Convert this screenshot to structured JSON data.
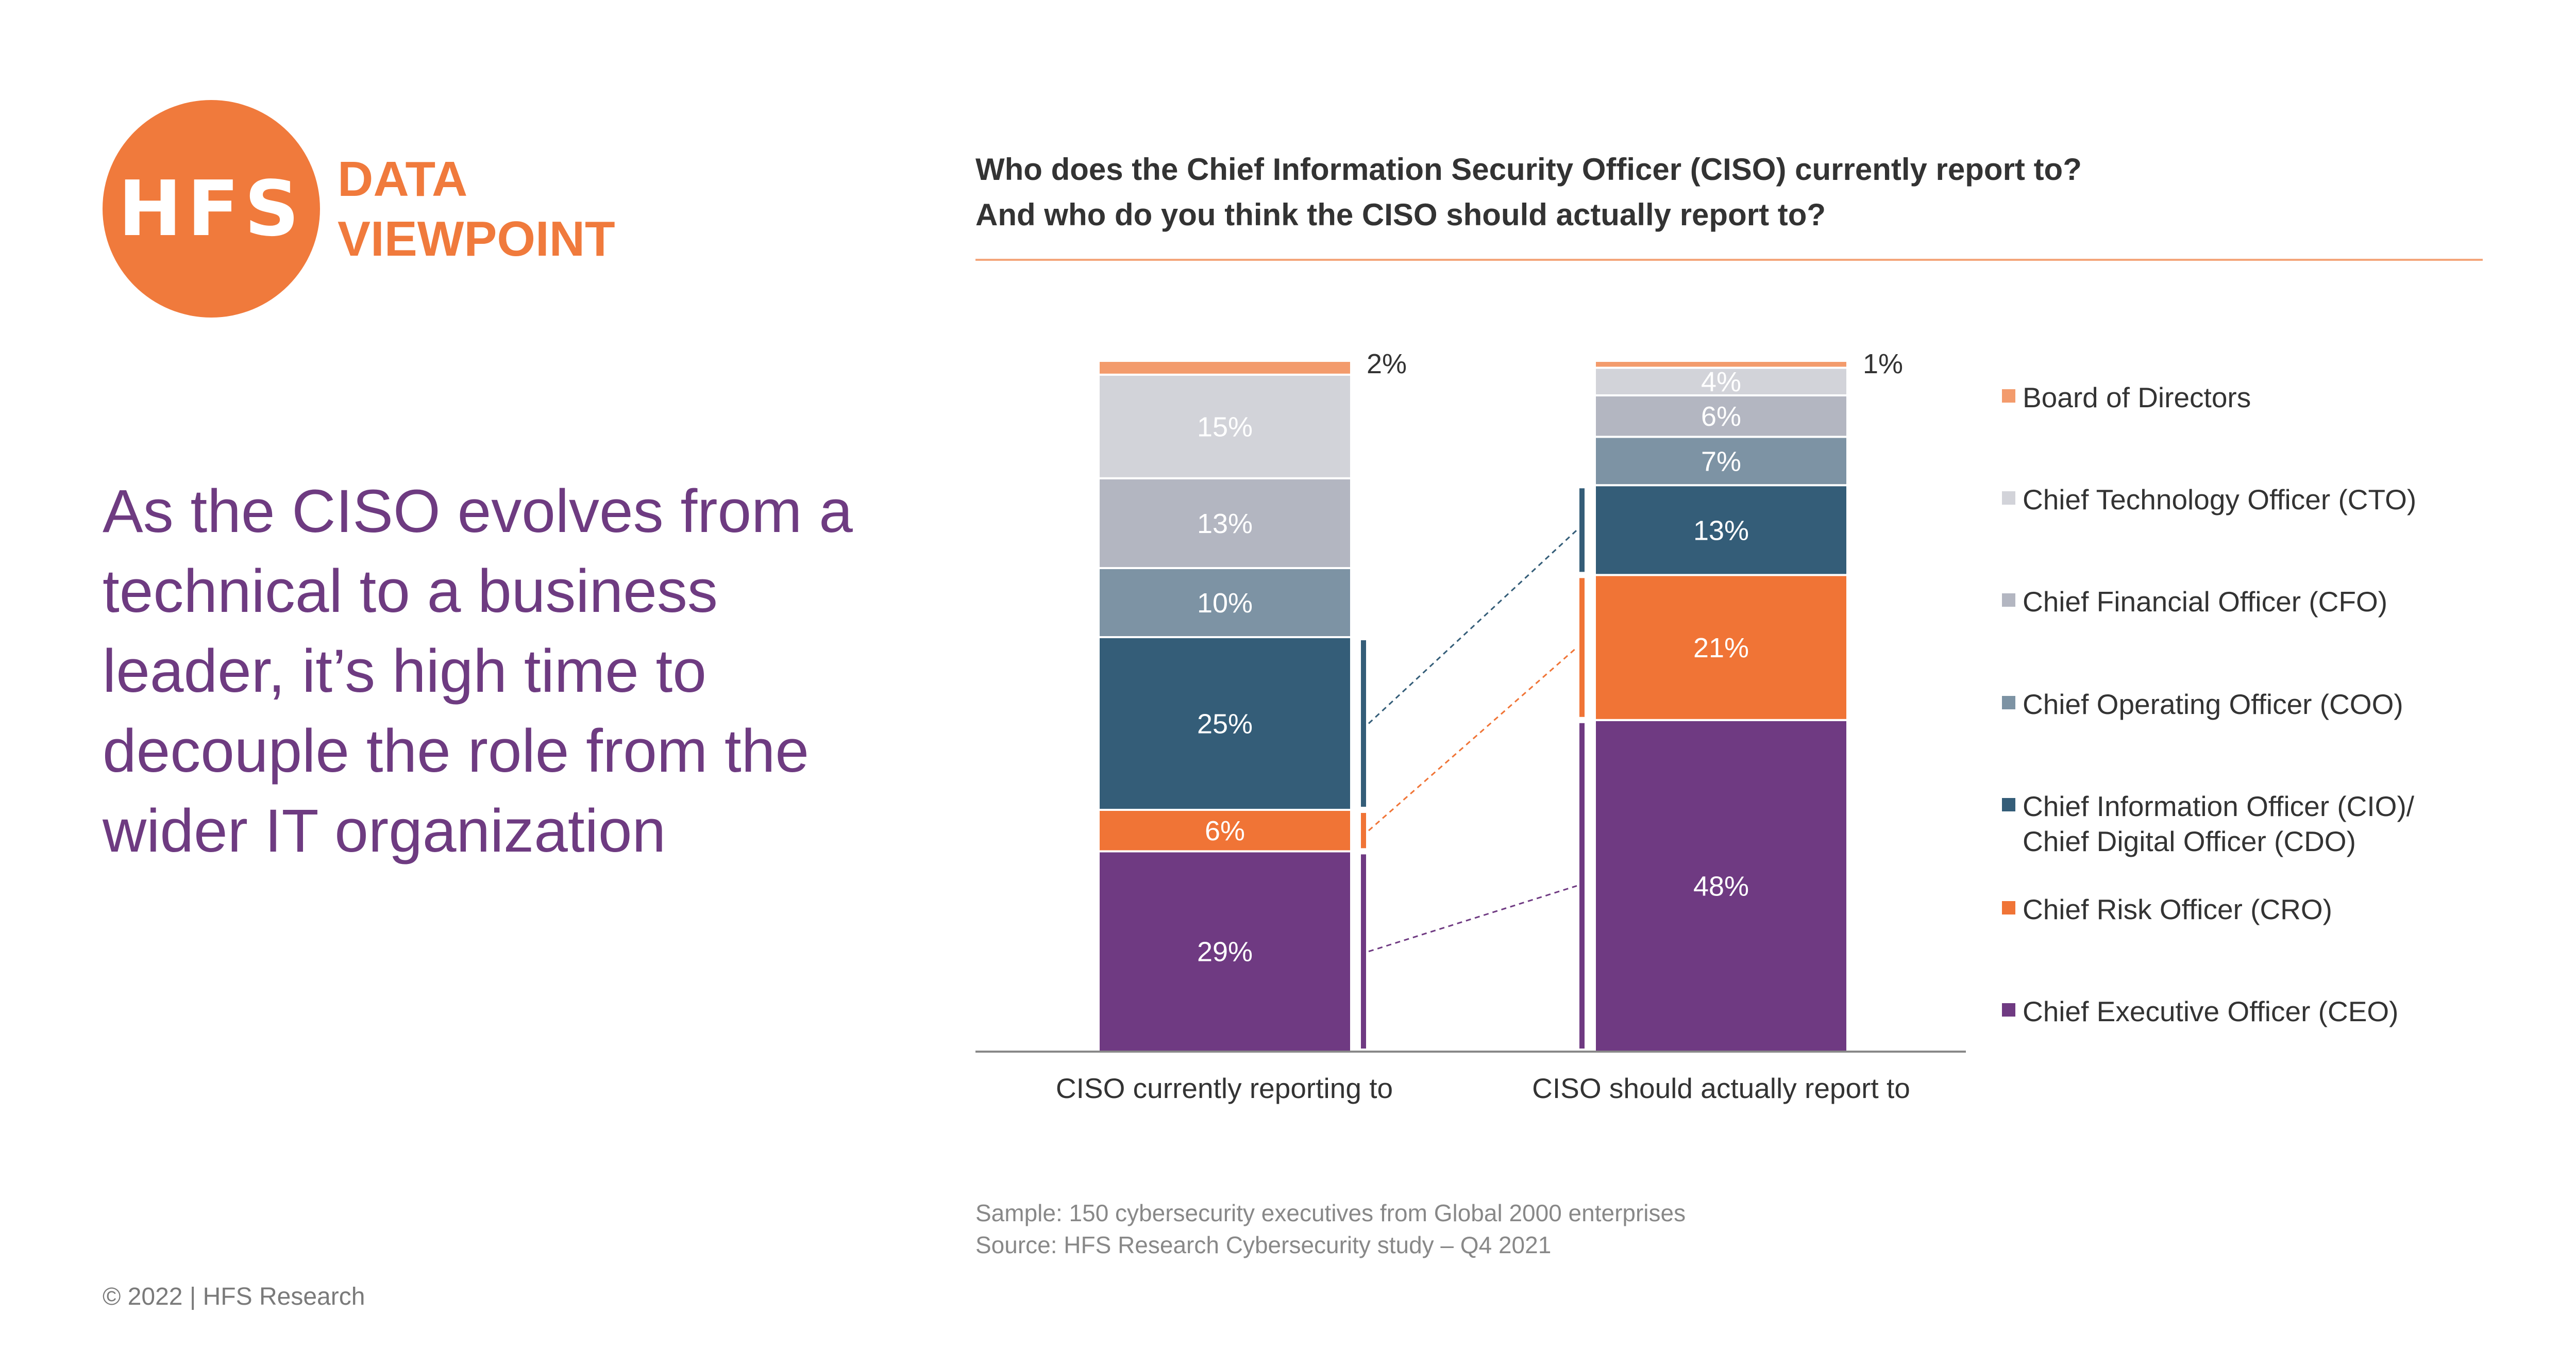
{
  "brand": {
    "logo_text": "HFS",
    "tag_line1": "DATA",
    "tag_line2": "VIEWPOINT"
  },
  "headline": "As the CISO evolves from a technical to a business leader, it’s high time to decouple the role from the wider IT organization",
  "copyright": "© 2022 | HFS Research",
  "footnote": {
    "sample": "Sample: 150 cybersecurity executives from Global 2000 enterprises",
    "source": "Source: HFS Research Cybersecurity study – Q4 2021"
  },
  "chart_data": {
    "type": "bar",
    "stacked": true,
    "title_line1": "Who does the Chief Information Security Officer (CISO) currently report to?",
    "title_line2": "And who do you think the CISO should actually report to?",
    "categories": [
      "CISO currently reporting to",
      "CISO should actually report to"
    ],
    "series": [
      {
        "name": "Chief Executive Officer (CEO)",
        "values": [
          29,
          48
        ],
        "color": "#6f3a82",
        "label_color": "#ffffff"
      },
      {
        "name": "Chief Risk Officer (CRO)",
        "values": [
          6,
          21
        ],
        "color": "#f07436",
        "label_color": "#ffffff"
      },
      {
        "name": "Chief Information Officer (CIO)/\nChief Digital Officer (CDO)",
        "values": [
          25,
          13
        ],
        "color": "#345d78",
        "label_color": "#ffffff"
      },
      {
        "name": "Chief Operating Officer (COO)",
        "values": [
          10,
          7
        ],
        "color": "#7d93a4",
        "label_color": "#ffffff"
      },
      {
        "name": "Chief Financial Officer (CFO)",
        "values": [
          13,
          6
        ],
        "color": "#b3b6c1",
        "label_color": "#ffffff"
      },
      {
        "name": "Chief Technology Officer (CTO)",
        "values": [
          15,
          4
        ],
        "color": "#d2d3d9",
        "label_color": "#ffffff"
      },
      {
        "name": "Board of Directors",
        "values": [
          2,
          1
        ],
        "color": "#f39b6c",
        "label_color": "#333333"
      }
    ],
    "ylim": [
      0,
      100
    ],
    "legend_position": "right",
    "legend_order": [
      "Board of Directors",
      "Chief Technology Officer (CTO)",
      "Chief Financial Officer (CFO)",
      "Chief Operating Officer (COO)",
      "Chief Information Officer (CIO)/\nChief Digital Officer (CDO)",
      "Chief Risk Officer (CRO)",
      "Chief Executive Officer (CEO)"
    ],
    "grid": false
  }
}
